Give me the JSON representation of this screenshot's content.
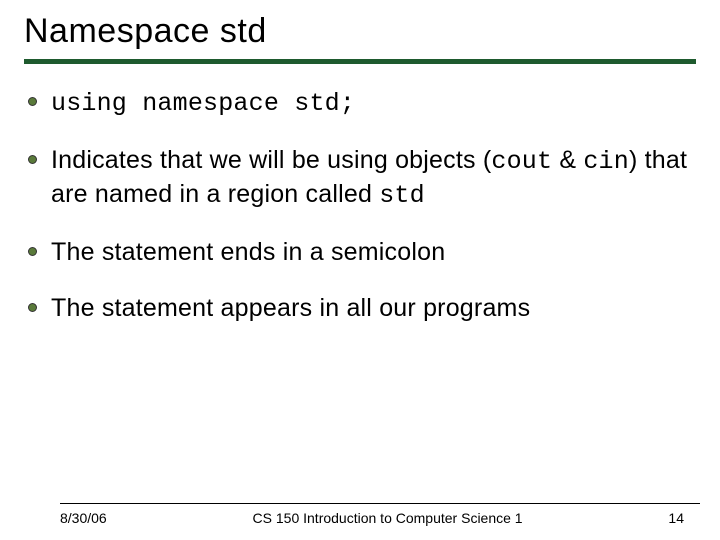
{
  "title": "Namespace std",
  "title_rule_color": "#1e5a2e",
  "bullet_color": "#5a7a3a",
  "bullets": {
    "b0_code": "using namespace std;",
    "b1_pre": "Indicates that we will be using objects (",
    "b1_code1": "cout",
    "b1_mid1": " & ",
    "b1_code2": "cin",
    "b1_mid2": ") that are named in a region called ",
    "b1_code3": "std",
    "b2": "The statement ends in a semicolon",
    "b3": "The statement appears in all our programs"
  },
  "footer": {
    "date": "8/30/06",
    "course": "CS 150 Introduction to Computer Science 1",
    "page": "14"
  }
}
